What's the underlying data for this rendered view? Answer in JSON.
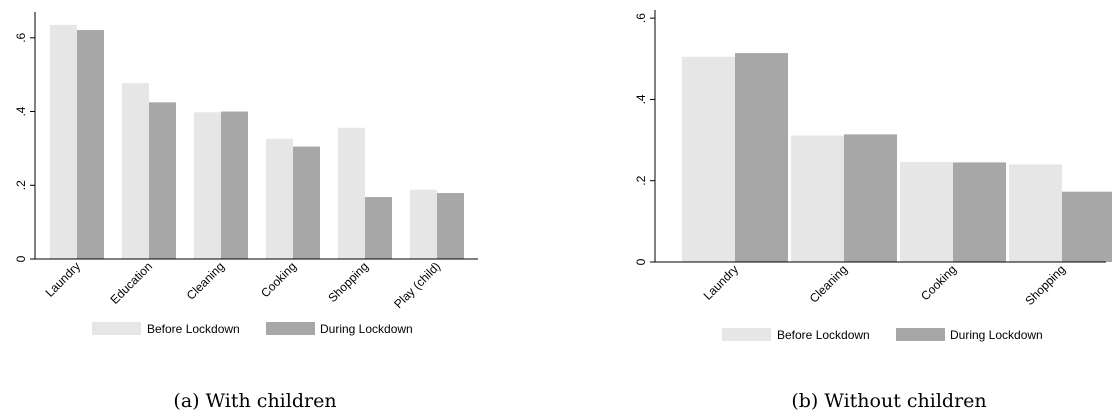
{
  "colors": {
    "before": "#e6e6e6",
    "during": "#a7a7a7",
    "axis": "#000000"
  },
  "legend": {
    "before_label": "Before Lockdown",
    "during_label": "During Lockdown"
  },
  "captions": [
    "(a) With children",
    "(b) Without children"
  ],
  "chart_data": [
    {
      "type": "bar",
      "categories": [
        "Laundry",
        "Education",
        "Cleaning",
        "Cooking",
        "Shopping",
        "Play (child)"
      ],
      "series": [
        {
          "name": "Before Lockdown",
          "values": [
            0.635,
            0.477,
            0.398,
            0.326,
            0.356,
            0.188
          ]
        },
        {
          "name": "During Lockdown",
          "values": [
            0.621,
            0.425,
            0.4,
            0.305,
            0.168,
            0.179
          ]
        }
      ],
      "yticks": [
        "0",
        ".2",
        ".4",
        ".6"
      ],
      "ylim": [
        0,
        0.67
      ],
      "grid": false,
      "legend_position": "bottom"
    },
    {
      "type": "bar",
      "categories": [
        "Laundry",
        "Cleaning",
        "Cooking",
        "Shopping"
      ],
      "series": [
        {
          "name": "Before Lockdown",
          "values": [
            0.505,
            0.311,
            0.246,
            0.24
          ]
        },
        {
          "name": "During Lockdown",
          "values": [
            0.514,
            0.314,
            0.245,
            0.173
          ]
        }
      ],
      "yticks": [
        "0",
        ".2",
        ".4",
        ".6"
      ],
      "ylim": [
        0,
        0.62
      ],
      "grid": false,
      "legend_position": "bottom"
    }
  ]
}
